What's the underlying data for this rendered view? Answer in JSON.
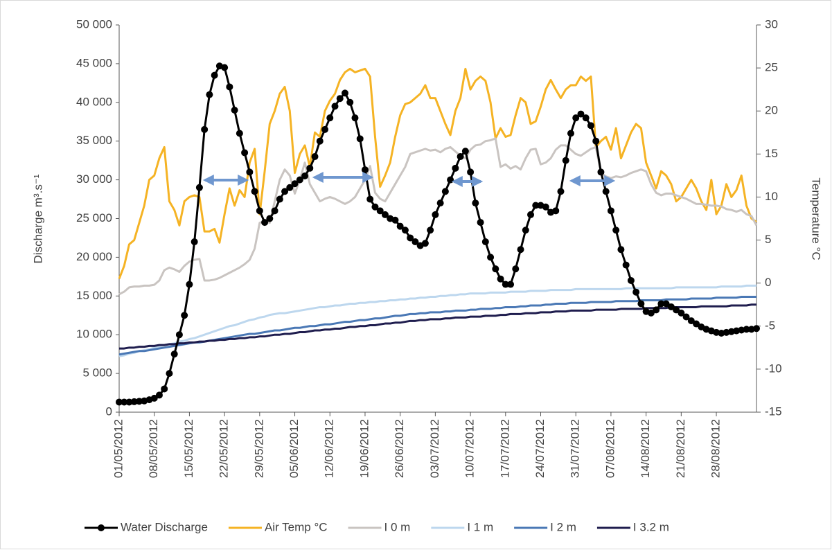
{
  "chart_data": {
    "type": "line",
    "y_label": "Discharge m³.s⁻¹",
    "y2_label": "Temperature °C",
    "categories": [
      "01/05/2012",
      null,
      null,
      null,
      null,
      null,
      null,
      "08/05/2012",
      null,
      null,
      null,
      null,
      null,
      null,
      "15/05/2012",
      null,
      null,
      null,
      null,
      null,
      null,
      "22/05/2012",
      null,
      null,
      null,
      null,
      null,
      null,
      "29/05/2012",
      null,
      null,
      null,
      null,
      null,
      null,
      "05/06/2012",
      null,
      null,
      null,
      null,
      null,
      null,
      "12/06/2012",
      null,
      null,
      null,
      null,
      null,
      null,
      "19/06/2012",
      null,
      null,
      null,
      null,
      null,
      null,
      "26/06/2012",
      null,
      null,
      null,
      null,
      null,
      null,
      "03/07/2012",
      null,
      null,
      null,
      null,
      null,
      null,
      "10/07/2012",
      null,
      null,
      null,
      null,
      null,
      null,
      "17/07/2012",
      null,
      null,
      null,
      null,
      null,
      null,
      "24/07/2012",
      null,
      null,
      null,
      null,
      null,
      null,
      "31/07/2012",
      null,
      null,
      null,
      null,
      null,
      null,
      "07/08/2012",
      null,
      null,
      null,
      null,
      null,
      null,
      "14/08/2012",
      null,
      null,
      null,
      null,
      null,
      null,
      "21/08/2012",
      null,
      null,
      null,
      null,
      null,
      null,
      "28/08/2012",
      null,
      null,
      null,
      null,
      null,
      null,
      null,
      null
    ],
    "ylim": [
      0,
      50000
    ],
    "yticks": [
      {
        "value": 0,
        "label": "0"
      },
      {
        "value": 5000,
        "label": "5 000"
      },
      {
        "value": 10000,
        "label": "10 000"
      },
      {
        "value": 15000,
        "label": "15 000"
      },
      {
        "value": 20000,
        "label": "20 000"
      },
      {
        "value": 25000,
        "label": "25 000"
      },
      {
        "value": 30000,
        "label": "30 000"
      },
      {
        "value": 35000,
        "label": "35 000"
      },
      {
        "value": 40000,
        "label": "40 000"
      },
      {
        "value": 45000,
        "label": "45 000"
      },
      {
        "value": 50000,
        "label": "50 000"
      }
    ],
    "y2lim": [
      -15,
      30
    ],
    "y2ticks": [
      -15,
      -10,
      -5,
      0,
      5,
      10,
      15,
      20,
      25,
      30
    ],
    "grid": false,
    "legend": "bottom",
    "series": [
      {
        "name": "Water Discharge",
        "color": "#000000",
        "marker": "circle",
        "values": [
          1300,
          1300,
          1300,
          1350,
          1400,
          1450,
          1600,
          1800,
          2200,
          3000,
          5000,
          7500,
          10000,
          12500,
          16500,
          22000,
          29000,
          36500,
          41000,
          43500,
          44700,
          44500,
          42000,
          39000,
          36000,
          33500,
          31000,
          28500,
          26000,
          24500,
          25000,
          26000,
          27500,
          28500,
          29000,
          29500,
          30000,
          30500,
          31500,
          33000,
          35000,
          36500,
          38000,
          39500,
          40500,
          41200,
          40000,
          38000,
          35300,
          31300,
          27500,
          26500,
          26000,
          25500,
          25000,
          24800,
          24000,
          23500,
          22500,
          22000,
          21500,
          21800,
          23500,
          25500,
          27000,
          28500,
          30000,
          31500,
          33000,
          33700,
          31000,
          27000,
          24500,
          22000,
          20000,
          18500,
          17200,
          16500,
          16500,
          18500,
          21000,
          23500,
          25500,
          26700,
          26700,
          26500,
          25800,
          26000,
          28500,
          32500,
          36000,
          38000,
          38500,
          38000,
          37000,
          35000,
          31000,
          28500,
          26000,
          23500,
          21000,
          19000,
          17000,
          15500,
          14000,
          13000,
          12800,
          13200,
          14000,
          14000,
          13600,
          13200,
          12800,
          12300,
          11800,
          11400,
          11000,
          10700,
          10500,
          10300,
          10200,
          10300,
          10400,
          10500,
          10600,
          10700,
          10700,
          10800
        ]
      },
      {
        "name": "Air Temp °C",
        "color": "#f5b324",
        "axis": "y2",
        "values": [
          0.5,
          2,
          4.5,
          5,
          7,
          9,
          12,
          12.5,
          14.5,
          15.8,
          9.5,
          8.5,
          6.7,
          9.5,
          10,
          10.2,
          10,
          6,
          6,
          6.3,
          4.7,
          8,
          11,
          9,
          10.8,
          10,
          14,
          15.6,
          8,
          13,
          18.5,
          20,
          22,
          22.8,
          20,
          12.8,
          15,
          16,
          13.5,
          17.5,
          17,
          20,
          21.2,
          22,
          23.6,
          24.5,
          24.9,
          24.5,
          24.7,
          24.9,
          24,
          17,
          11.2,
          12.5,
          14,
          17,
          19.5,
          20.8,
          21,
          21.5,
          22,
          23,
          21.5,
          21.5,
          20,
          18.5,
          17.2,
          20,
          21.5,
          24.9,
          22.5,
          23.5,
          24,
          23.5,
          21,
          16.8,
          18,
          17,
          17.2,
          19.5,
          21.5,
          21,
          18.5,
          18.8,
          20.5,
          22.5,
          23.6,
          22.5,
          21.5,
          22.5,
          23,
          23,
          24,
          23.5,
          24,
          15.8,
          16.5,
          17,
          15.5,
          18,
          14.5,
          16,
          17.5,
          18.5,
          18,
          14,
          12.5,
          11,
          13,
          12.5,
          11.5,
          9.5,
          10,
          11,
          12,
          11,
          9.5,
          8.5,
          12,
          8,
          9,
          11.5,
          10,
          10.8,
          12.5,
          9,
          7.5,
          7.1
        ]
      },
      {
        "name": "I 0 m",
        "color": "#c9c4c1",
        "axis": "y2",
        "values": [
          -1.3,
          -1,
          -0.5,
          -0.4,
          -0.4,
          -0.3,
          -0.3,
          -0.2,
          0.3,
          1.5,
          1.8,
          1.6,
          1.3,
          2,
          2.5,
          2.7,
          2.8,
          0.3,
          0.3,
          0.4,
          0.6,
          0.9,
          1.2,
          1.5,
          1.8,
          2.2,
          2.7,
          4,
          7,
          7.2,
          7,
          9.5,
          12,
          13.2,
          12.5,
          10.4,
          12,
          14,
          11.5,
          10.5,
          9.5,
          9.8,
          10,
          9.8,
          9.5,
          9.2,
          9.5,
          10,
          11,
          12,
          13.6,
          10.5,
          9.8,
          9.5,
          10.5,
          11.5,
          12.5,
          13.5,
          15,
          15.2,
          15.4,
          15.6,
          15.4,
          15.5,
          15.2,
          15.6,
          15.8,
          15.3,
          14.8,
          14.5,
          15.5,
          16,
          16.1,
          16.5,
          16.6,
          16.8,
          13.5,
          13.8,
          13.3,
          13.6,
          13.2,
          14.5,
          15.5,
          15.6,
          13.8,
          14,
          14.5,
          15.5,
          16,
          16,
          15.5,
          15,
          14.8,
          15.2,
          15.6,
          15.8,
          12.8,
          12.4,
          12.2,
          12.4,
          12.3,
          12.5,
          12.8,
          13,
          13.2,
          13,
          11.5,
          10.5,
          10.2,
          10.4,
          10.4,
          10.2,
          10,
          9.8,
          9.5,
          9.2,
          9.2,
          9.1,
          9,
          9,
          8.9,
          8.6,
          8.5,
          8.3,
          8.5,
          8,
          7.8,
          6.7
        ]
      },
      {
        "name": "I 1 m",
        "color": "#bdd7ee",
        "axis": "y2",
        "values": [
          -8.5,
          -8.4,
          -8.2,
          -8.1,
          -7.9,
          -7.8,
          -7.7,
          -7.5,
          -7.4,
          -7.2,
          -7.1,
          -7,
          -6.8,
          -6.7,
          -6.5,
          -6.4,
          -6.2,
          -6,
          -5.8,
          -5.6,
          -5.4,
          -5.2,
          -5,
          -4.9,
          -4.7,
          -4.5,
          -4.3,
          -4.2,
          -4,
          -3.9,
          -3.7,
          -3.6,
          -3.5,
          -3.5,
          -3.4,
          -3.3,
          -3.2,
          -3.1,
          -3,
          -2.9,
          -2.8,
          -2.8,
          -2.7,
          -2.6,
          -2.6,
          -2.5,
          -2.4,
          -2.4,
          -2.3,
          -2.3,
          -2.2,
          -2.2,
          -2.1,
          -2.1,
          -2,
          -2,
          -1.9,
          -1.9,
          -1.8,
          -1.8,
          -1.7,
          -1.7,
          -1.6,
          -1.6,
          -1.5,
          -1.5,
          -1.4,
          -1.4,
          -1.3,
          -1.3,
          -1.2,
          -1.2,
          -1.2,
          -1.2,
          -1.1,
          -1.1,
          -1.1,
          -1.1,
          -1,
          -1,
          -1,
          -1,
          -0.9,
          -0.9,
          -0.9,
          -0.9,
          -0.8,
          -0.8,
          -0.8,
          -0.8,
          -0.8,
          -0.7,
          -0.7,
          -0.7,
          -0.7,
          -0.7,
          -0.7,
          -0.7,
          -0.7,
          -0.7,
          -0.7,
          -0.6,
          -0.6,
          -0.6,
          -0.6,
          -0.6,
          -0.6,
          -0.6,
          -0.6,
          -0.6,
          -0.6,
          -0.5,
          -0.5,
          -0.5,
          -0.5,
          -0.5,
          -0.5,
          -0.5,
          -0.5,
          -0.5,
          -0.4,
          -0.4,
          -0.4,
          -0.4,
          -0.4,
          -0.3,
          -0.3,
          -0.3
        ]
      },
      {
        "name": "I 2 m",
        "color": "#4a78b5",
        "axis": "y2",
        "values": [
          -8.3,
          -8.2,
          -8.1,
          -8,
          -7.9,
          -7.9,
          -7.8,
          -7.7,
          -7.6,
          -7.5,
          -7.4,
          -7.3,
          -7.2,
          -7.1,
          -7,
          -6.9,
          -6.9,
          -6.8,
          -6.7,
          -6.6,
          -6.5,
          -6.4,
          -6.3,
          -6.2,
          -6.1,
          -6,
          -5.9,
          -5.9,
          -5.8,
          -5.7,
          -5.6,
          -5.5,
          -5.5,
          -5.4,
          -5.3,
          -5.2,
          -5.2,
          -5.1,
          -5,
          -5,
          -4.9,
          -4.8,
          -4.8,
          -4.7,
          -4.6,
          -4.5,
          -4.5,
          -4.4,
          -4.3,
          -4.3,
          -4.2,
          -4.1,
          -4.1,
          -4,
          -3.9,
          -3.8,
          -3.8,
          -3.7,
          -3.6,
          -3.6,
          -3.5,
          -3.5,
          -3.4,
          -3.4,
          -3.4,
          -3.3,
          -3.3,
          -3.2,
          -3.2,
          -3.2,
          -3.1,
          -3.1,
          -3,
          -3,
          -3,
          -2.9,
          -2.9,
          -2.8,
          -2.8,
          -2.8,
          -2.7,
          -2.7,
          -2.6,
          -2.6,
          -2.6,
          -2.5,
          -2.5,
          -2.4,
          -2.4,
          -2.4,
          -2.3,
          -2.3,
          -2.3,
          -2.3,
          -2.2,
          -2.2,
          -2.2,
          -2.2,
          -2.2,
          -2.1,
          -2.1,
          -2.1,
          -2.1,
          -2.1,
          -2,
          -2,
          -2,
          -2,
          -2,
          -1.9,
          -1.9,
          -1.9,
          -1.9,
          -1.9,
          -1.8,
          -1.8,
          -1.8,
          -1.8,
          -1.8,
          -1.7,
          -1.7,
          -1.7,
          -1.7,
          -1.7,
          -1.6,
          -1.6,
          -1.6,
          -1.6
        ]
      },
      {
        "name": "I 3.2 m",
        "color": "#1f1d4e",
        "axis": "y2",
        "values": [
          -7.6,
          -7.6,
          -7.5,
          -7.5,
          -7.4,
          -7.4,
          -7.3,
          -7.3,
          -7.2,
          -7.2,
          -7.1,
          -7.1,
          -7,
          -7,
          -6.9,
          -6.9,
          -6.8,
          -6.8,
          -6.7,
          -6.7,
          -6.6,
          -6.6,
          -6.5,
          -6.5,
          -6.4,
          -6.4,
          -6.3,
          -6.3,
          -6.2,
          -6.2,
          -6.1,
          -6,
          -6,
          -5.9,
          -5.9,
          -5.8,
          -5.7,
          -5.7,
          -5.6,
          -5.5,
          -5.5,
          -5.4,
          -5.4,
          -5.3,
          -5.3,
          -5.2,
          -5.1,
          -5.1,
          -5,
          -5,
          -4.9,
          -4.9,
          -4.8,
          -4.7,
          -4.7,
          -4.6,
          -4.6,
          -4.5,
          -4.4,
          -4.4,
          -4.3,
          -4.3,
          -4.2,
          -4.2,
          -4.2,
          -4.1,
          -4.1,
          -4,
          -4,
          -4,
          -3.9,
          -3.9,
          -3.9,
          -3.8,
          -3.8,
          -3.8,
          -3.7,
          -3.7,
          -3.6,
          -3.6,
          -3.6,
          -3.5,
          -3.5,
          -3.5,
          -3.4,
          -3.4,
          -3.4,
          -3.3,
          -3.3,
          -3.3,
          -3.2,
          -3.2,
          -3.2,
          -3.2,
          -3.2,
          -3.1,
          -3.1,
          -3.1,
          -3.1,
          -3.1,
          -3,
          -3,
          -3,
          -3,
          -3,
          -2.9,
          -2.9,
          -2.9,
          -2.9,
          -2.9,
          -2.8,
          -2.8,
          -2.8,
          -2.8,
          -2.8,
          -2.8,
          -2.7,
          -2.7,
          -2.7,
          -2.7,
          -2.7,
          -2.7,
          -2.6,
          -2.6,
          -2.6,
          -2.6,
          -2.5,
          -2.5
        ]
      }
    ]
  }
}
